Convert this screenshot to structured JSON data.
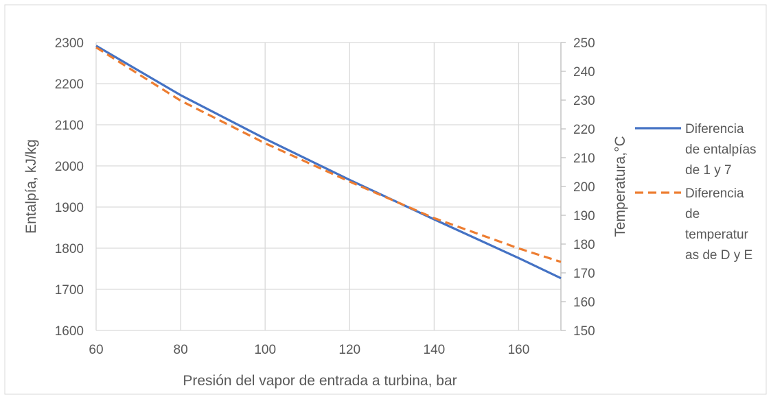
{
  "chart_data": {
    "type": "line",
    "title": "",
    "xlabel": "Presión del vapor de entrada a turbina, bar",
    "ylabel": "Entalpía, kJ/kg",
    "y2label": "Temperatura,°C",
    "xlim": [
      60,
      170
    ],
    "x_ticks": [
      "60",
      "80",
      "100",
      "120",
      "140",
      "160"
    ],
    "ylim": [
      1600,
      2300
    ],
    "y_ticks": [
      "1600",
      "1700",
      "1800",
      "1900",
      "2000",
      "2100",
      "2200",
      "2300"
    ],
    "y2lim": [
      150,
      250
    ],
    "y2_ticks": [
      "150",
      "160",
      "170",
      "180",
      "190",
      "200",
      "210",
      "220",
      "230",
      "240",
      "250"
    ],
    "grid": true,
    "legend_position": "right",
    "series": [
      {
        "name_lines": [
          "Diferencia",
          "de entalpías",
          "de 1 y 7"
        ],
        "axis": "left",
        "style": "solid",
        "color": "#4472C4",
        "x": [
          60,
          80,
          100,
          120,
          140,
          160,
          170
        ],
        "y": [
          2292,
          2172,
          2066,
          1966,
          1870,
          1776,
          1727
        ]
      },
      {
        "name_lines": [
          "Diferencia",
          "de",
          "temperatur",
          "as de D y E"
        ],
        "axis": "right",
        "style": "dashed",
        "color": "#ED7D31",
        "x": [
          60,
          80,
          100,
          120,
          140,
          160,
          170
        ],
        "y": [
          248.3,
          229.8,
          215,
          201.7,
          189,
          178.5,
          173.8
        ]
      }
    ]
  }
}
